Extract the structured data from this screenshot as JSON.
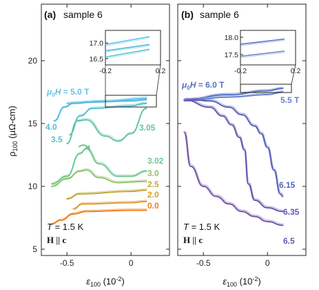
{
  "chart_data": [
    {
      "panel_label": "(a)",
      "title": "sample 6",
      "type": "line",
      "xlabel": "ε100 (10-2)",
      "ylabel": "ρ100 (μΩ-cm)",
      "xlim": [
        -0.7,
        0.3
      ],
      "ylim": [
        4.5,
        24.5
      ],
      "xticks": [
        -0.5,
        0
      ],
      "xtick_labels": [
        "-0.5",
        "0"
      ],
      "yticks": [
        5,
        10,
        15,
        20
      ],
      "ytick_labels": [
        "5",
        "10",
        "15",
        "20"
      ],
      "grid": false,
      "annotations": {
        "temperature": "T = 1.5 K",
        "field_direction": "H || c",
        "field_prefix": "μ0H = ",
        "field_value": "5.0 T"
      },
      "series": [
        {
          "name": "5.0 T",
          "label": "5.0 T",
          "color": "#5ec4ea",
          "x": [
            -0.5,
            -0.2,
            0.12
          ],
          "y": [
            16.6,
            16.75,
            17.0
          ]
        },
        {
          "name": "4.0",
          "label": "4.0",
          "color": "#4fbad8",
          "x": [
            -0.6,
            -0.52,
            -0.45,
            -0.3,
            0.0,
            0.12
          ],
          "y": [
            15.2,
            16.3,
            16.6,
            16.7,
            16.8,
            16.9
          ]
        },
        {
          "name": "3.5",
          "label": "3.5",
          "color": "#57c1cf",
          "x": [
            -0.48,
            -0.4,
            -0.3,
            0.0,
            0.12
          ],
          "y": [
            14.1,
            15.6,
            16.2,
            16.4,
            16.6
          ]
        },
        {
          "name": "3.05",
          "label": "3.05",
          "color": "#62c6a2",
          "x": [
            -0.5,
            -0.42,
            -0.35,
            -0.2,
            -0.1,
            0.0,
            0.12
          ],
          "y": [
            13.4,
            15.2,
            15.3,
            14.0,
            13.6,
            14.2,
            16.2
          ]
        },
        {
          "name": "3.02",
          "label": "3.02",
          "color": "#6cc88e",
          "x": [
            -0.62,
            -0.5,
            -0.4,
            -0.35,
            -0.25,
            -0.1,
            0.0,
            0.12
          ],
          "y": [
            10.2,
            10.8,
            12.6,
            13.0,
            11.8,
            10.8,
            10.8,
            11.2
          ]
        },
        {
          "name": "3.0",
          "label": "3.0",
          "color": "#8cc465",
          "x": [
            -0.62,
            -0.5,
            -0.4,
            -0.35,
            -0.25,
            -0.1,
            0.12
          ],
          "y": [
            10.0,
            10.6,
            11.2,
            11.3,
            10.7,
            10.3,
            10.4
          ]
        },
        {
          "name": "2.5",
          "label": "2.5",
          "color": "#bfa93a",
          "x": [
            -0.5,
            -0.4,
            0.0,
            0.12
          ],
          "y": [
            9.0,
            9.4,
            9.6,
            9.7
          ]
        },
        {
          "name": "2.0",
          "label": "2.0",
          "color": "#dd9a2a",
          "x": [
            -0.45,
            -0.38,
            0.0,
            0.12
          ],
          "y": [
            8.2,
            8.6,
            8.7,
            8.8
          ]
        },
        {
          "name": "0.0",
          "label": "0.0",
          "color": "#ef7f1f",
          "x": [
            -0.62,
            -0.55,
            -0.45,
            -0.35,
            0.0,
            0.12
          ],
          "y": [
            7.0,
            7.3,
            7.8,
            8.0,
            8.1,
            8.1
          ]
        }
      ],
      "inset": {
        "xlim": [
          -0.2,
          0.2
        ],
        "ylim": [
          16.3,
          17.4
        ],
        "xticks": [
          -0.2,
          0.2
        ],
        "xtick_labels": [
          "-0.2",
          "0.2"
        ],
        "yticks": [
          16.5,
          17.0
        ],
        "ytick_labels": [
          "16.5",
          "17.0"
        ],
        "series": [
          {
            "color": "#5ec4ea",
            "x": [
              -0.2,
              0.12
            ],
            "y": [
              16.95,
              17.2
            ]
          },
          {
            "color": "#4fbad8",
            "x": [
              -0.2,
              0.12
            ],
            "y": [
              16.75,
              16.95
            ]
          },
          {
            "color": "#57c1cf",
            "x": [
              -0.2,
              0.12
            ],
            "y": [
              16.55,
              16.8
            ]
          }
        ]
      }
    },
    {
      "panel_label": "(b)",
      "title": "sample 6",
      "type": "line",
      "xlabel": "ε100 (10-2)",
      "ylabel": "",
      "xlim": [
        -0.7,
        0.3
      ],
      "ylim": [
        4.5,
        24.5
      ],
      "xticks": [
        -0.5,
        0
      ],
      "xtick_labels": [
        "-0.5",
        "0"
      ],
      "yticks": [
        5,
        10,
        15,
        20
      ],
      "grid": false,
      "annotations": {
        "temperature": "T = 1.5 K",
        "field_direction": "H || c",
        "field_prefix": "μ0H = ",
        "field_value": "6.0 T"
      },
      "series": [
        {
          "name": "6.0 T",
          "label": "6.0 T",
          "color": "#5470c4",
          "x": [
            -0.65,
            -0.3,
            0.0,
            0.12
          ],
          "y": [
            16.9,
            17.3,
            17.6,
            17.8
          ]
        },
        {
          "name": "5.5 T",
          "label": "5.5 T",
          "color": "#6781cc",
          "x": [
            -0.65,
            -0.3,
            0.0,
            0.12
          ],
          "y": [
            16.8,
            17.1,
            17.3,
            17.5
          ]
        },
        {
          "name": "6.15",
          "label": "6.15",
          "color": "#5662b8",
          "x": [
            -0.6,
            -0.45,
            -0.3,
            -0.2,
            -0.1,
            -0.05,
            0.0,
            0.05,
            0.1,
            0.12
          ],
          "y": [
            16.9,
            16.8,
            16.3,
            15.7,
            14.8,
            14.2,
            13.1,
            11.3,
            9.4,
            9.2
          ]
        },
        {
          "name": "6.35",
          "label": "6.35",
          "color": "#6656b0",
          "x": [
            -0.65,
            -0.45,
            -0.35,
            -0.28,
            -0.22,
            -0.18,
            -0.15,
            -0.1,
            0.0,
            0.12
          ],
          "y": [
            16.9,
            16.3,
            15.6,
            14.9,
            13.9,
            12.9,
            10.2,
            8.9,
            8.3,
            8.0
          ]
        },
        {
          "name": "6.5",
          "label": "6.5",
          "color": "#7355a8",
          "x": [
            -0.65,
            -0.6,
            -0.5,
            -0.4,
            -0.3,
            -0.2,
            -0.1,
            0.0,
            0.12
          ],
          "y": [
            14.3,
            11.6,
            10.0,
            9.2,
            8.6,
            8.0,
            7.6,
            7.2,
            6.9
          ]
        }
      ],
      "inset": {
        "xlim": [
          -0.2,
          0.2
        ],
        "ylim": [
          17.2,
          18.2
        ],
        "xticks": [
          -0.2,
          0.2
        ],
        "xtick_labels": [
          "-0.2",
          "0.2"
        ],
        "yticks": [
          17.5,
          18.0
        ],
        "ytick_labels": [
          "17.5",
          "18.0"
        ],
        "series": [
          {
            "color": "#5470c4",
            "x": [
              -0.2,
              0.12
            ],
            "y": [
              17.8,
              17.95
            ]
          },
          {
            "color": "#6781cc",
            "x": [
              -0.2,
              0.12
            ],
            "y": [
              17.45,
              17.6
            ]
          }
        ]
      }
    }
  ]
}
